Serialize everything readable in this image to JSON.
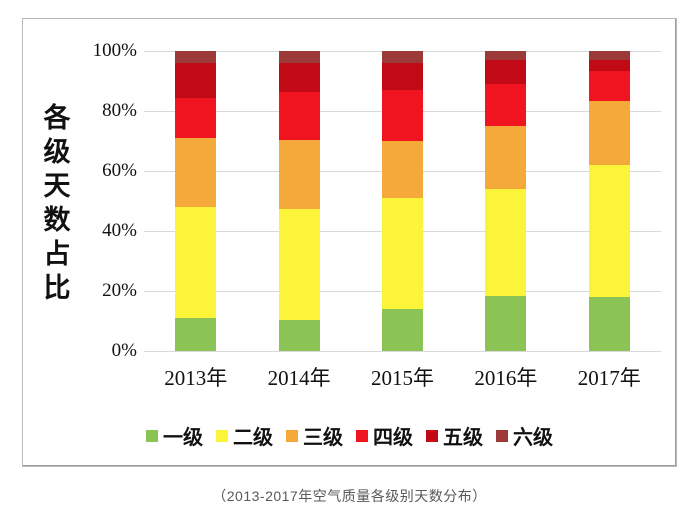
{
  "caption": "（2013-2017年空气质量各级别天数分布）",
  "chart_data": {
    "type": "bar",
    "stacked": true,
    "percent_stacked": true,
    "title": "",
    "xlabel": "",
    "ylabel": "各级天数占比",
    "ylim": [
      0,
      100
    ],
    "yticks": [
      "0%",
      "20%",
      "40%",
      "60%",
      "80%",
      "100%"
    ],
    "ytick_values": [
      0,
      20,
      40,
      60,
      80,
      100
    ],
    "grid": true,
    "legend_position": "bottom",
    "categories": [
      "2013年",
      "2014年",
      "2015年",
      "2016年",
      "2017年"
    ],
    "series": [
      {
        "name": "一级",
        "color": "#8CC355",
        "values": [
          11.0,
          10.5,
          14.0,
          18.5,
          18.0
        ]
      },
      {
        "name": "二级",
        "color": "#FBF438",
        "values": [
          37.0,
          37.0,
          37.0,
          35.5,
          44.0
        ]
      },
      {
        "name": "三级",
        "color": "#F6A93B",
        "values": [
          23.0,
          23.0,
          19.0,
          21.0,
          21.5
        ]
      },
      {
        "name": "四级",
        "color": "#F01420",
        "values": [
          13.5,
          16.0,
          17.0,
          14.0,
          10.0
        ]
      },
      {
        "name": "五级",
        "color": "#C20A16",
        "values": [
          11.5,
          9.5,
          9.0,
          8.0,
          3.5
        ]
      },
      {
        "name": "六级",
        "color": "#9B3A38",
        "values": [
          4.0,
          4.0,
          4.0,
          3.0,
          3.0
        ]
      }
    ],
    "colors": {
      "gridline": "#d9d9d9",
      "axis_text": "#111111",
      "caption_text": "#595959"
    }
  }
}
